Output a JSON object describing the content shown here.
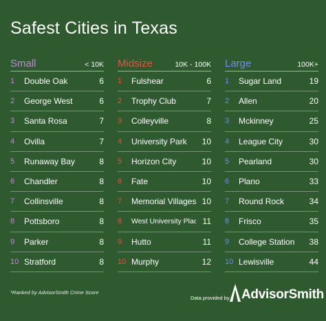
{
  "chart_data": {
    "type": "table",
    "title": "Safest Cities in Texas",
    "groups": [
      {
        "name": "Small",
        "range": "< 10K",
        "color": "#c08ad6",
        "rows": [
          {
            "rank": "1",
            "city": "Double Oak",
            "score": "6"
          },
          {
            "rank": "2",
            "city": "George West",
            "score": "6"
          },
          {
            "rank": "3",
            "city": "Santa Rosa",
            "score": "7"
          },
          {
            "rank": "4",
            "city": "Ovilla",
            "score": "7"
          },
          {
            "rank": "5",
            "city": "Runaway Bay",
            "score": "8"
          },
          {
            "rank": "6",
            "city": "Chandler",
            "score": "8"
          },
          {
            "rank": "7",
            "city": "Collinsville",
            "score": "8"
          },
          {
            "rank": "8",
            "city": "Pottsboro",
            "score": "8"
          },
          {
            "rank": "9",
            "city": "Parker",
            "score": "8"
          },
          {
            "rank": "10",
            "city": "Stratford",
            "score": "8"
          }
        ]
      },
      {
        "name": "Midsize",
        "range": "10K - 100K",
        "color": "#e8533f",
        "rows": [
          {
            "rank": "1",
            "city": "Fulshear",
            "score": "6"
          },
          {
            "rank": "2",
            "city": "Trophy Club",
            "score": "7"
          },
          {
            "rank": "3",
            "city": "Colleyville",
            "score": "8"
          },
          {
            "rank": "4",
            "city": "University Park",
            "score": "10"
          },
          {
            "rank": "5",
            "city": "Horizon City",
            "score": "10"
          },
          {
            "rank": "6",
            "city": "Fate",
            "score": "10"
          },
          {
            "rank": "7",
            "city": "Memorial Villages",
            "score": "10"
          },
          {
            "rank": "8",
            "city": "West University Place",
            "score": "11"
          },
          {
            "rank": "9",
            "city": "Hutto",
            "score": "11"
          },
          {
            "rank": "10",
            "city": "Murphy",
            "score": "12"
          }
        ]
      },
      {
        "name": "Large",
        "range": "100K+",
        "color": "#6f8fe8",
        "rows": [
          {
            "rank": "1",
            "city": "Sugar Land",
            "score": "19"
          },
          {
            "rank": "2",
            "city": "Allen",
            "score": "20"
          },
          {
            "rank": "3",
            "city": "Mckinney",
            "score": "25"
          },
          {
            "rank": "4",
            "city": "League City",
            "score": "30"
          },
          {
            "rank": "5",
            "city": "Pearland",
            "score": "30"
          },
          {
            "rank": "6",
            "city": "Plano",
            "score": "33"
          },
          {
            "rank": "7",
            "city": "Round Rock",
            "score": "34"
          },
          {
            "rank": "8",
            "city": "Frisco",
            "score": "35"
          },
          {
            "rank": "9",
            "city": "College Station",
            "score": "38"
          },
          {
            "rank": "10",
            "city": "Lewisville",
            "score": "44"
          }
        ]
      }
    ]
  },
  "footnote": "*Ranked by AdvisorSmith Crime Score",
  "provided_by": "Data provided by",
  "brand": "AdvisorSmith",
  "colors": {
    "background": "#2f5a30",
    "text": "#ffffff"
  }
}
